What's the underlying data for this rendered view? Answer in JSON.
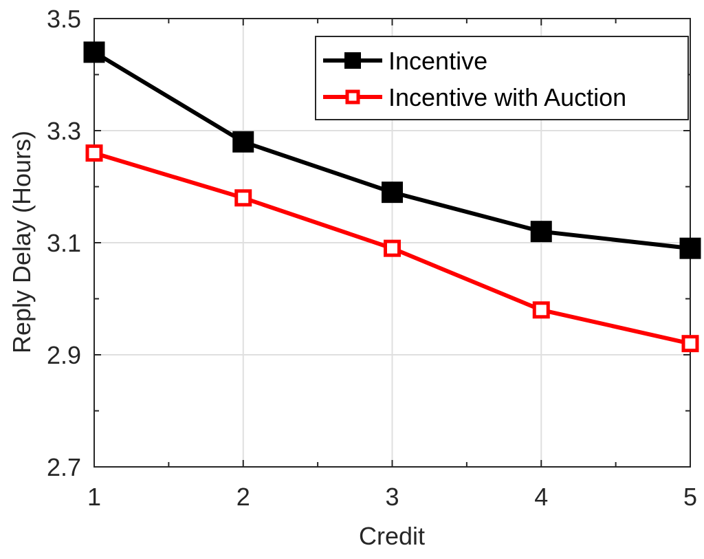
{
  "chart_data": {
    "type": "line",
    "title": "",
    "xlabel": "Credit",
    "ylabel": "Reply Delay (Hours)",
    "x": [
      1,
      2,
      3,
      4,
      5
    ],
    "xlim": [
      1,
      5
    ],
    "ylim": [
      2.7,
      3.5
    ],
    "xticks": [
      "1",
      "2",
      "3",
      "4",
      "5"
    ],
    "yticks": [
      "2.7",
      "2.9",
      "3.1",
      "3.3",
      "3.5"
    ],
    "grid": true,
    "legend_position": "top-right",
    "series": [
      {
        "name": "Incentive",
        "values": [
          3.44,
          3.28,
          3.19,
          3.12,
          3.09
        ],
        "color": "#000000",
        "marker": "filled-square"
      },
      {
        "name": "Incentive with Auction",
        "values": [
          3.26,
          3.18,
          3.09,
          2.98,
          2.92
        ],
        "color": "#ff0000",
        "marker": "open-square"
      }
    ]
  }
}
